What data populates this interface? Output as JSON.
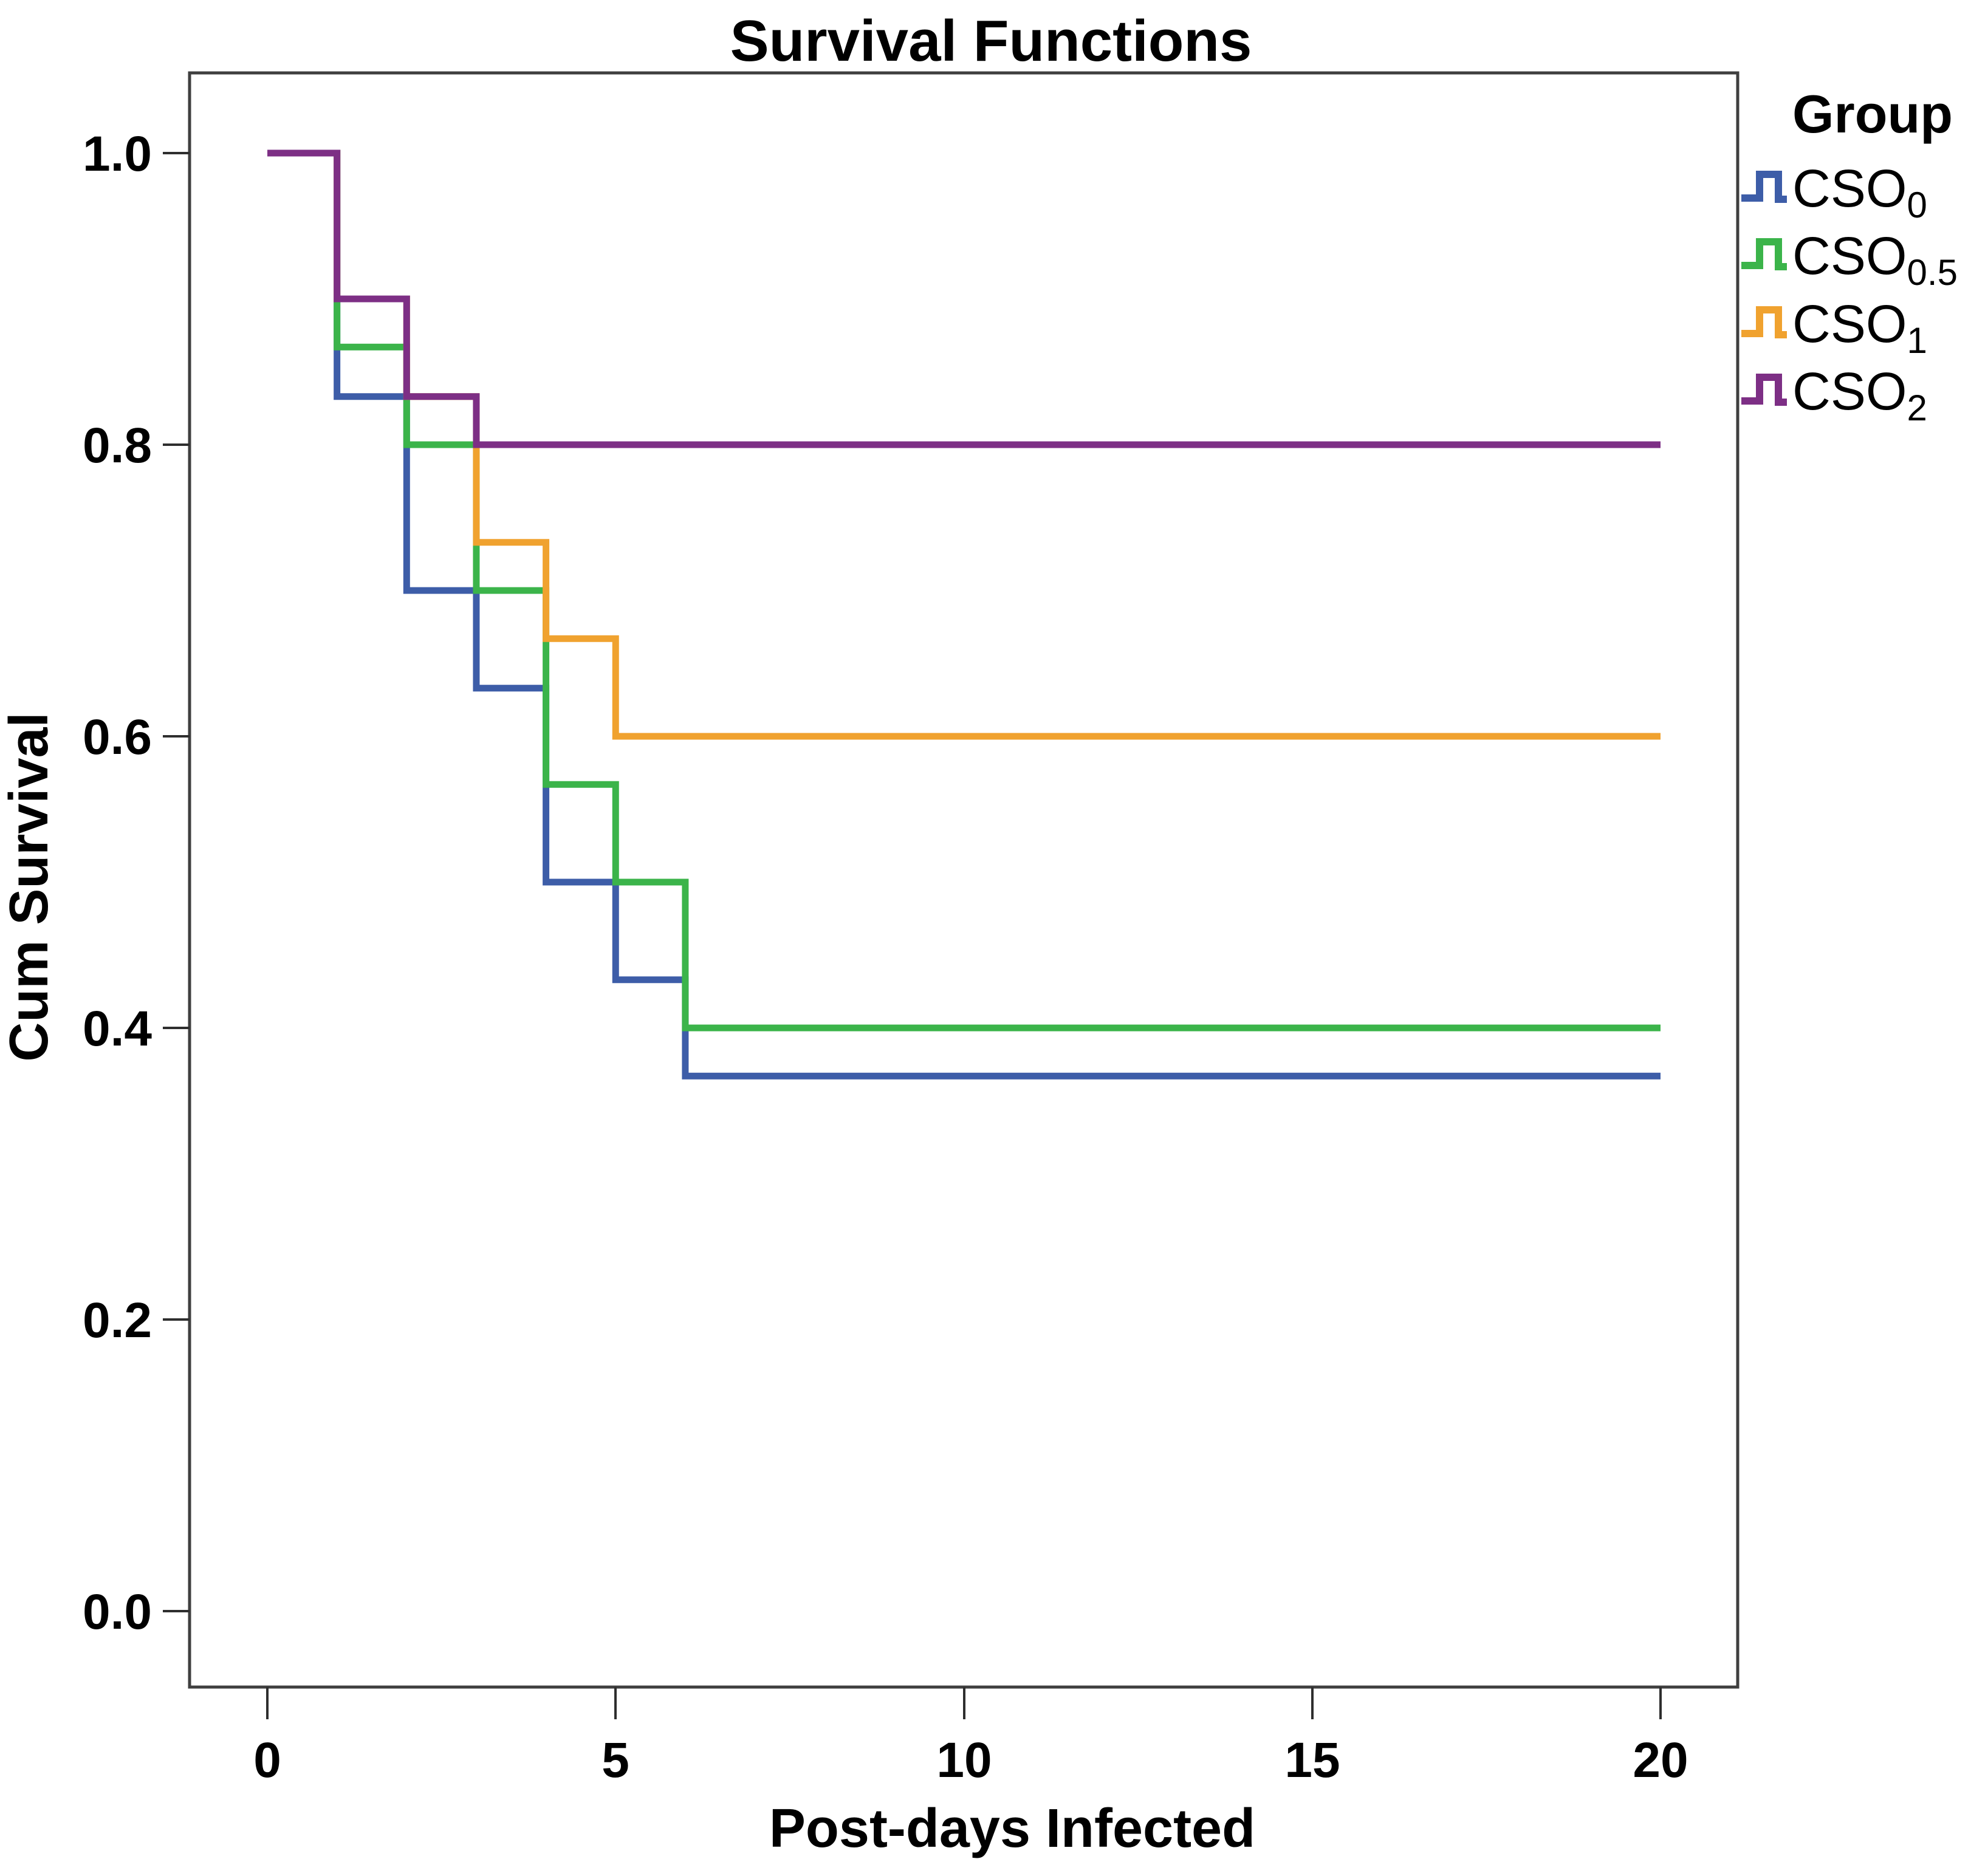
{
  "title": "Survival Functions",
  "axes": {
    "x_label": "Post-days Infected",
    "y_label": "Cum Survival",
    "x_ticks": [
      "0",
      "5",
      "10",
      "15",
      "20"
    ],
    "y_ticks": [
      "1.0",
      "0.8",
      "0.6",
      "0.4",
      "0.2",
      "0.0"
    ]
  },
  "legend": {
    "title": "Group"
  },
  "chart_data": {
    "type": "line",
    "subtype": "kaplan-meier-step",
    "title": "Survival Functions",
    "xlabel": "Post-days Infected",
    "ylabel": "Cum Survival",
    "xlim": [
      0,
      20
    ],
    "ylim": [
      0.0,
      1.0
    ],
    "x_tick_values": [
      0,
      5,
      10,
      15,
      20
    ],
    "y_tick_values": [
      1.0,
      0.8,
      0.6,
      0.4,
      0.2,
      0.0
    ],
    "x_end": 20,
    "grid": false,
    "legend_title": "Group",
    "legend_position": "right-outside",
    "series": [
      {
        "name": "CSO0",
        "label_base": "CSO",
        "label_subscript": "0",
        "color": "#3D5DA8",
        "step_times": [
          0,
          1,
          2,
          3,
          4,
          5,
          6
        ],
        "survival": [
          1.0,
          0.833,
          0.7,
          0.633,
          0.5,
          0.433,
          0.367
        ]
      },
      {
        "name": "CSO0.5",
        "label_base": "CSO",
        "label_subscript": "0.5",
        "color": "#3BB44A",
        "step_times": [
          0,
          1,
          2,
          3,
          4,
          5,
          6
        ],
        "survival": [
          1.0,
          0.867,
          0.8,
          0.7,
          0.567,
          0.5,
          0.4
        ]
      },
      {
        "name": "CSO1",
        "label_base": "CSO",
        "label_subscript": "1",
        "color": "#F0A22F",
        "step_times": [
          0,
          1,
          2,
          3,
          4,
          5
        ],
        "survival": [
          1.0,
          0.9,
          0.833,
          0.733,
          0.667,
          0.6
        ]
      },
      {
        "name": "CSO2",
        "label_base": "CSO",
        "label_subscript": "2",
        "color": "#7D2F85",
        "step_times": [
          0,
          1,
          2,
          3
        ],
        "survival": [
          1.0,
          0.9,
          0.833,
          0.8
        ]
      }
    ]
  }
}
